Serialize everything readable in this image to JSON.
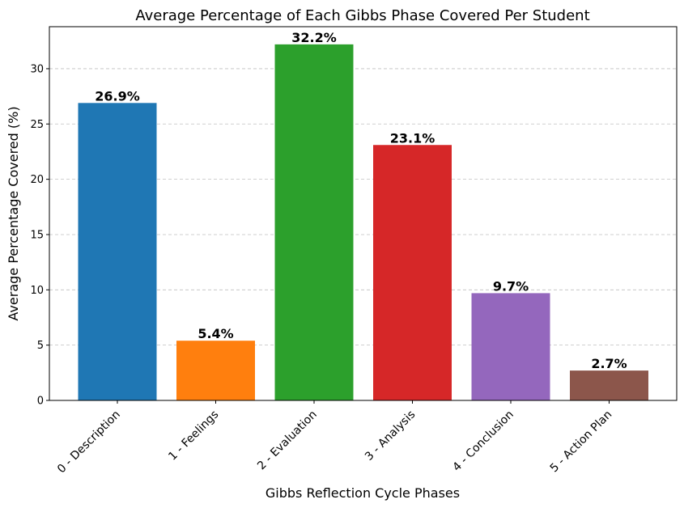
{
  "chart_data": {
    "type": "bar",
    "title": "Average Percentage of Each Gibbs Phase Covered Per Student",
    "xlabel": "Gibbs Reflection Cycle Phases",
    "ylabel": "Average Percentage Covered (%)",
    "categories": [
      "0 - Description",
      "1 - Feelings",
      "2 - Evaluation",
      "3 - Analysis",
      "4 - Conclusion",
      "5 - Action Plan"
    ],
    "values": [
      26.9,
      5.4,
      32.2,
      23.1,
      9.7,
      2.7
    ],
    "value_labels": [
      "26.9%",
      "5.4%",
      "32.2%",
      "23.1%",
      "9.7%",
      "2.7%"
    ],
    "colors": [
      "#1f77b4",
      "#ff7f0e",
      "#2ca02c",
      "#d62728",
      "#9467bd",
      "#8c564b"
    ],
    "ylim": [
      0,
      33.8
    ],
    "yticks": [
      0,
      5,
      10,
      15,
      20,
      25,
      30
    ],
    "ytick_labels": [
      "0",
      "5",
      "10",
      "15",
      "20",
      "25",
      "30"
    ],
    "grid": "y-dashed",
    "legend": "none"
  }
}
